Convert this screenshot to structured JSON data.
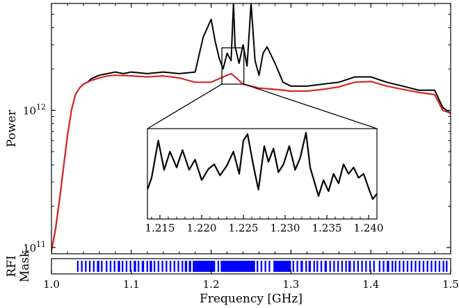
{
  "chart_data": [
    {
      "type": "line",
      "ylabel": "Power",
      "yscale": "log",
      "ylim": [
        90000000000.0,
        6000000000000.0
      ],
      "xlim": [
        1.0,
        1.5
      ],
      "y_ticks": [
        {
          "value": 100000000000.0,
          "base": "10",
          "exp": "11"
        },
        {
          "value": 1000000000000.0,
          "base": "10",
          "exp": "12"
        }
      ],
      "x_ticks": [
        1.0,
        1.1,
        1.2,
        1.3,
        1.4,
        1.5
      ],
      "x_tick_labels": [
        "1.0",
        "1.1",
        "1.2",
        "1.3",
        "1.4",
        "1.5"
      ],
      "series": [
        {
          "color": "#000000",
          "x": [
            1.0,
            1.005,
            1.01,
            1.015,
            1.02,
            1.025,
            1.03,
            1.035,
            1.04,
            1.045,
            1.05,
            1.06,
            1.07,
            1.08,
            1.09,
            1.1,
            1.12,
            1.14,
            1.16,
            1.18,
            1.19,
            1.2,
            1.205,
            1.21,
            1.215,
            1.22,
            1.225,
            1.228,
            1.23,
            1.235,
            1.24,
            1.245,
            1.25,
            1.255,
            1.26,
            1.265,
            1.27,
            1.28,
            1.29,
            1.3,
            1.32,
            1.34,
            1.36,
            1.38,
            1.4,
            1.42,
            1.44,
            1.46,
            1.48,
            1.49,
            1.5
          ],
          "y": [
            95000000000.0,
            135000000000.0,
            220000000000.0,
            380000000000.0,
            650000000000.0,
            1000000000000.0,
            1300000000000.0,
            1450000000000.0,
            1550000000000.0,
            1600000000000.0,
            1700000000000.0,
            1800000000000.0,
            1850000000000.0,
            1900000000000.0,
            1850000000000.0,
            1900000000000.0,
            1850000000000.0,
            1900000000000.0,
            1850000000000.0,
            1900000000000.0,
            3400000000000.0,
            4600000000000.0,
            3200000000000.0,
            2400000000000.0,
            2000000000000.0,
            2600000000000.0,
            2300000000000.0,
            6000000000000.0,
            2900000000000.0,
            2200000000000.0,
            3000000000000.0,
            2100000000000.0,
            6000000000000.0,
            2300000000000.0,
            1800000000000.0,
            2600000000000.0,
            2900000000000.0,
            2200000000000.0,
            1600000000000.0,
            1500000000000.0,
            1500000000000.0,
            1550000000000.0,
            1600000000000.0,
            1750000000000.0,
            1750000000000.0,
            1600000000000.0,
            1500000000000.0,
            1400000000000.0,
            1400000000000.0,
            1050000000000.0,
            950000000000.0
          ]
        },
        {
          "color": "#d62728",
          "x": [
            1.0,
            1.005,
            1.01,
            1.015,
            1.02,
            1.025,
            1.03,
            1.035,
            1.04,
            1.05,
            1.06,
            1.07,
            1.08,
            1.1,
            1.12,
            1.14,
            1.16,
            1.18,
            1.2,
            1.21,
            1.22,
            1.225,
            1.23,
            1.24,
            1.25,
            1.26,
            1.28,
            1.3,
            1.32,
            1.34,
            1.36,
            1.38,
            1.4,
            1.42,
            1.44,
            1.46,
            1.48,
            1.49,
            1.5
          ],
          "y": [
            95000000000.0,
            135000000000.0,
            220000000000.0,
            380000000000.0,
            650000000000.0,
            1000000000000.0,
            1300000000000.0,
            1450000000000.0,
            1550000000000.0,
            1650000000000.0,
            1720000000000.0,
            1780000000000.0,
            1800000000000.0,
            1780000000000.0,
            1750000000000.0,
            1780000000000.0,
            1720000000000.0,
            1600000000000.0,
            1600000000000.0,
            1700000000000.0,
            1800000000000.0,
            1850000000000.0,
            1750000000000.0,
            1550000000000.0,
            1500000000000.0,
            1450000000000.0,
            1420000000000.0,
            1380000000000.0,
            1380000000000.0,
            1420000000000.0,
            1480000000000.0,
            1600000000000.0,
            1620000000000.0,
            1500000000000.0,
            1420000000000.0,
            1350000000000.0,
            1300000000000.0,
            1000000000000.0,
            950000000000.0
          ]
        }
      ],
      "grid": false
    },
    {
      "type": "line",
      "role": "inset zoom",
      "xlim": [
        1.2135,
        1.241
      ],
      "x_ticks": [
        1.215,
        1.22,
        1.225,
        1.23,
        1.235,
        1.24
      ],
      "x_tick_labels": [
        "1.215",
        "1.220",
        "1.225",
        "1.230",
        "1.235",
        "1.240"
      ],
      "zoom_box": {
        "xmin": 1.2135,
        "xmax": 1.241,
        "ymin": 1550000000000.0,
        "ymax": 2850000000000.0
      },
      "series": [
        {
          "color": "#000000",
          "x": [
            1.2135,
            1.214,
            1.2148,
            1.2155,
            1.2162,
            1.217,
            1.2177,
            1.2185,
            1.2192,
            1.22,
            1.2208,
            1.2215,
            1.2222,
            1.223,
            1.2238,
            1.2245,
            1.225,
            1.2255,
            1.2262,
            1.2268,
            1.2275,
            1.228,
            1.2286,
            1.2292,
            1.2298,
            1.2305,
            1.2312,
            1.2318,
            1.2325,
            1.233,
            1.2335,
            1.234,
            1.2346,
            1.2352,
            1.2358,
            1.2364,
            1.237,
            1.2376,
            1.2382,
            1.2388,
            1.2394,
            1.24,
            1.2405,
            1.241
          ],
          "y": [
            0.3,
            0.45,
            0.92,
            0.55,
            0.78,
            0.58,
            0.8,
            0.55,
            0.68,
            0.42,
            0.56,
            0.62,
            0.48,
            0.6,
            0.78,
            0.5,
            0.92,
            1.0,
            0.6,
            0.3,
            0.85,
            0.65,
            0.82,
            0.52,
            0.62,
            0.85,
            0.55,
            0.7,
            1.02,
            0.58,
            0.4,
            0.22,
            0.42,
            0.28,
            0.5,
            0.38,
            0.62,
            0.5,
            0.58,
            0.45,
            0.5,
            0.32,
            0.18,
            0.25
          ]
        }
      ]
    },
    {
      "type": "heatmap",
      "role": "RFI mask",
      "ylabel_lines": [
        "RFI",
        "Mask"
      ],
      "xlabel": "Frequency [GHz]",
      "xlim": [
        1.0,
        1.5
      ],
      "color": "#0000ff",
      "masked_intervals": [
        [
          1.032,
          1.034
        ],
        [
          1.037,
          1.039
        ],
        [
          1.042,
          1.044
        ],
        [
          1.047,
          1.049
        ],
        [
          1.052,
          1.054
        ],
        [
          1.057,
          1.06
        ],
        [
          1.062,
          1.064
        ],
        [
          1.068,
          1.07
        ],
        [
          1.073,
          1.075
        ],
        [
          1.078,
          1.08
        ],
        [
          1.083,
          1.086
        ],
        [
          1.088,
          1.09
        ],
        [
          1.093,
          1.095
        ],
        [
          1.098,
          1.1
        ],
        [
          1.103,
          1.106
        ],
        [
          1.108,
          1.11
        ],
        [
          1.113,
          1.116
        ],
        [
          1.119,
          1.121
        ],
        [
          1.123,
          1.126
        ],
        [
          1.128,
          1.13
        ],
        [
          1.133,
          1.135
        ],
        [
          1.138,
          1.14
        ],
        [
          1.143,
          1.145
        ],
        [
          1.148,
          1.15
        ],
        [
          1.153,
          1.155
        ],
        [
          1.158,
          1.16
        ],
        [
          1.163,
          1.165
        ],
        [
          1.167,
          1.17
        ],
        [
          1.172,
          1.175
        ],
        [
          1.177,
          1.18
        ],
        [
          1.18,
          1.205
        ],
        [
          1.208,
          1.21
        ],
        [
          1.212,
          1.255
        ],
        [
          1.257,
          1.259
        ],
        [
          1.262,
          1.264
        ],
        [
          1.267,
          1.269
        ],
        [
          1.272,
          1.274
        ],
        [
          1.278,
          1.3
        ],
        [
          1.302,
          1.304
        ],
        [
          1.307,
          1.309
        ],
        [
          1.312,
          1.315
        ],
        [
          1.318,
          1.32
        ],
        [
          1.322,
          1.325
        ],
        [
          1.328,
          1.33
        ],
        [
          1.332,
          1.334
        ],
        [
          1.337,
          1.339
        ],
        [
          1.342,
          1.345
        ],
        [
          1.348,
          1.35
        ],
        [
          1.353,
          1.355
        ],
        [
          1.358,
          1.36
        ],
        [
          1.363,
          1.365
        ],
        [
          1.368,
          1.37
        ],
        [
          1.372,
          1.375
        ],
        [
          1.378,
          1.38
        ],
        [
          1.383,
          1.385
        ],
        [
          1.388,
          1.39
        ],
        [
          1.393,
          1.395
        ],
        [
          1.398,
          1.4
        ],
        [
          1.403,
          1.405
        ],
        [
          1.41,
          1.412
        ],
        [
          1.415,
          1.417
        ],
        [
          1.42,
          1.423
        ],
        [
          1.426,
          1.428
        ],
        [
          1.43,
          1.432
        ],
        [
          1.435,
          1.437
        ],
        [
          1.44,
          1.442
        ],
        [
          1.445,
          1.447
        ],
        [
          1.45,
          1.452
        ],
        [
          1.455,
          1.457
        ],
        [
          1.46,
          1.462
        ],
        [
          1.465,
          1.467
        ],
        [
          1.47,
          1.472
        ],
        [
          1.475,
          1.477
        ],
        [
          1.48,
          1.482
        ],
        [
          1.485,
          1.487
        ],
        [
          1.49,
          1.492
        ],
        [
          1.494,
          1.496
        ]
      ]
    }
  ]
}
